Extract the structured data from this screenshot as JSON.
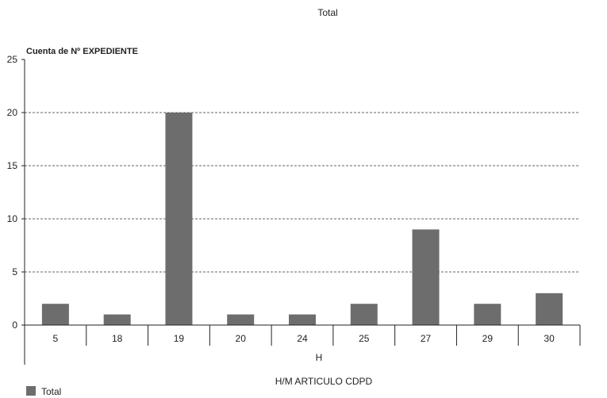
{
  "chart_data": {
    "type": "bar",
    "title": "Total",
    "ylabel": "Cuenta de Nº EXPEDIENTE",
    "xgroup": "H",
    "xlabel": "H/M  ARTICULO  CDPD",
    "categories": [
      "5",
      "18",
      "19",
      "20",
      "24",
      "25",
      "27",
      "29",
      "30"
    ],
    "series": [
      {
        "name": "Total",
        "values": [
          2,
          1,
          20,
          1,
          1,
          2,
          9,
          2,
          3
        ]
      }
    ],
    "ylim": [
      0,
      25
    ],
    "yticks": [
      0,
      5,
      10,
      15,
      20,
      25
    ],
    "grid": true,
    "legend_position": "bottom-left",
    "bar_color": "#6d6d6d"
  }
}
